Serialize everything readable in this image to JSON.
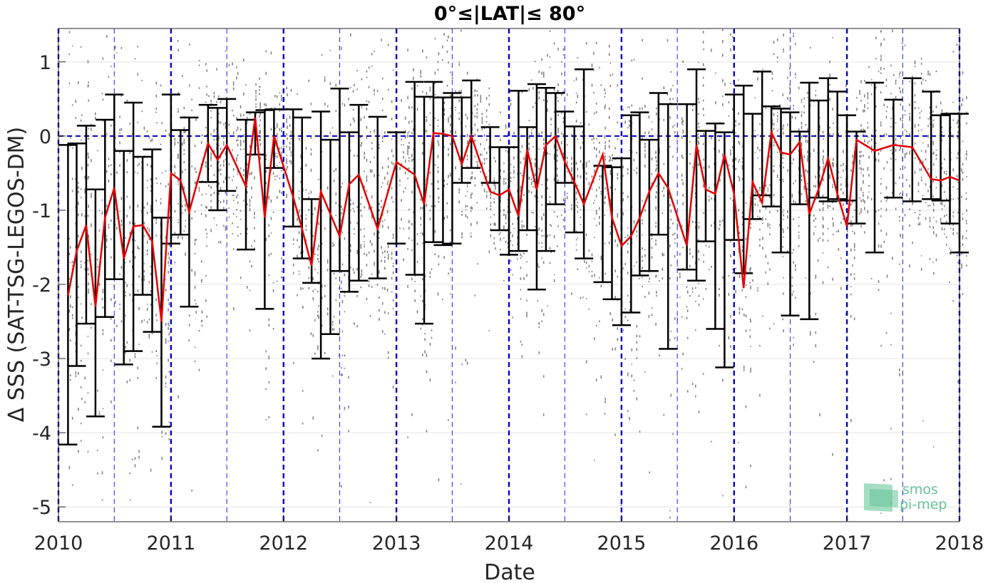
{
  "chart_data": {
    "type": "line",
    "title": "0°≤|LAT|≤ 80°",
    "xlabel": "Date",
    "ylabel": "Δ SSS (SAT-TSG-LEGOS-DM)",
    "xlim": [
      "2010-01-01",
      "2018-01-01"
    ],
    "ylim": [
      -5.2,
      1.45
    ],
    "x_ticks": [
      "2010",
      "2011",
      "2012",
      "2013",
      "2014",
      "2015",
      "2016",
      "2017",
      "2018"
    ],
    "y_ticks": [
      1,
      0,
      -1,
      -2,
      -3,
      -4,
      -5
    ],
    "y_tick_labels": [
      "1",
      "0",
      "-1",
      "-2",
      "-3",
      "-4",
      "-5"
    ],
    "grid": true,
    "reference_line": 0,
    "colors": {
      "mean_line": "#e60000",
      "error_bars": "#000000",
      "scatter": "#6e6e6e",
      "year_lines": "#0000cc",
      "half_year_lines": "#3333ff"
    },
    "series": [
      {
        "type": "line_with_error_bars",
        "x": [
          "2010-02-01",
          "2010-03-01",
          "2010-04-01",
          "2010-05-01",
          "2010-06-01",
          "2010-07-01",
          "2010-08-01",
          "2010-09-01",
          "2010-10-01",
          "2010-11-01",
          "2010-12-01",
          "2011-01-01",
          "2011-02-01",
          "2011-03-01",
          "2011-05-01",
          "2011-06-01",
          "2011-07-01",
          "2011-09-01",
          "2011-10-01",
          "2011-11-01",
          "2011-12-01",
          "2012-02-01",
          "2012-03-01",
          "2012-04-01",
          "2012-05-01",
          "2012-06-01",
          "2012-07-01",
          "2012-08-01",
          "2012-09-01",
          "2012-11-01",
          "2013-01-01",
          "2013-03-01",
          "2013-04-01",
          "2013-05-01",
          "2013-06-01",
          "2013-07-01",
          "2013-08-01",
          "2013-09-01",
          "2013-11-01",
          "2013-12-01",
          "2014-01-01",
          "2014-02-01",
          "2014-03-01",
          "2014-04-01",
          "2014-05-01",
          "2014-06-01",
          "2014-07-01",
          "2014-08-01",
          "2014-09-01",
          "2014-11-01",
          "2014-12-01",
          "2015-01-01",
          "2015-02-01",
          "2015-03-01",
          "2015-04-01",
          "2015-05-01",
          "2015-06-01",
          "2015-08-01",
          "2015-09-01",
          "2015-10-01",
          "2015-11-01",
          "2015-12-01",
          "2016-01-01",
          "2016-02-01",
          "2016-03-01",
          "2016-04-01",
          "2016-05-01",
          "2016-06-01",
          "2016-07-01",
          "2016-08-01",
          "2016-09-01",
          "2016-10-01",
          "2016-11-01",
          "2016-12-01",
          "2017-01-01",
          "2017-02-01",
          "2017-04-01",
          "2017-06-01",
          "2017-08-01",
          "2017-10-01",
          "2017-11-01",
          "2017-12-01",
          "2018-01-01"
        ],
        "mean": [
          -2.15,
          -1.55,
          -1.2,
          -2.3,
          -1.1,
          -0.7,
          -1.65,
          -1.22,
          -1.2,
          -1.42,
          -2.5,
          -0.5,
          -0.6,
          -1.02,
          -0.1,
          -0.32,
          -0.12,
          -0.68,
          0.25,
          -1.1,
          0.0,
          -0.82,
          -1.25,
          -1.75,
          -0.75,
          -1.05,
          -1.35,
          -0.65,
          -0.52,
          -1.25,
          -0.35,
          -0.52,
          -0.92,
          0.04,
          0.03,
          0.0,
          -0.38,
          0.0,
          -0.75,
          -0.8,
          -0.72,
          -1.08,
          -0.18,
          -0.72,
          -0.12,
          0.0,
          -0.35,
          -0.62,
          -0.92,
          -0.25,
          -1.1,
          -1.48,
          -1.35,
          -1.1,
          -0.75,
          -0.5,
          -0.7,
          -1.48,
          -0.12,
          -0.72,
          -0.78,
          -0.25,
          -0.78,
          -2.05,
          -0.62,
          -0.9,
          0.05,
          -0.22,
          -0.25,
          -0.08,
          -1.05,
          -0.72,
          -0.3,
          -0.78,
          -1.22,
          -0.05,
          -0.2,
          -0.12,
          -0.15,
          -0.58,
          -0.6,
          -0.55,
          -0.6
        ],
        "upper": [
          -0.12,
          -0.1,
          0.14,
          -0.72,
          0.22,
          0.56,
          -0.2,
          0.45,
          -0.28,
          -0.18,
          -1.1,
          0.56,
          0.08,
          0.25,
          0.42,
          0.38,
          0.5,
          0.22,
          0.32,
          0.35,
          0.36,
          0.36,
          0.25,
          -0.85,
          0.33,
          -0.05,
          0.64,
          0.05,
          0.42,
          0.26,
          0.05,
          0.73,
          0.53,
          0.73,
          0.52,
          0.58,
          0.52,
          0.75,
          0.12,
          -0.15,
          -0.15,
          0.61,
          0.12,
          0.7,
          0.65,
          0.58,
          0.33,
          0.13,
          0.9,
          -0.4,
          -0.42,
          -0.3,
          0.28,
          0.32,
          -0.05,
          0.58,
          0.43,
          0.43,
          0.9,
          0.07,
          0.17,
          0.05,
          0.56,
          0.68,
          0.3,
          0.87,
          0.4,
          0.37,
          0.32,
          0.06,
          0.72,
          0.48,
          0.78,
          0.6,
          0.28,
          0.06,
          0.72,
          0.49,
          0.78,
          0.6,
          0.28,
          0.3,
          0.3
        ],
        "lower": [
          -4.16,
          -3.1,
          -2.53,
          -3.78,
          -2.44,
          -1.93,
          -3.08,
          -2.9,
          -2.14,
          -2.64,
          -3.92,
          -1.45,
          -1.33,
          -2.3,
          -0.62,
          -1.0,
          -0.74,
          -1.53,
          -0.25,
          -2.33,
          -0.43,
          -1.22,
          -1.65,
          -1.98,
          -3.0,
          -2.67,
          -1.82,
          -2.1,
          -1.95,
          -1.92,
          -1.45,
          -1.87,
          -2.53,
          -1.43,
          -1.47,
          -1.45,
          -0.63,
          -0.43,
          -0.63,
          -1.27,
          -1.6,
          -1.55,
          -1.27,
          -2.07,
          -1.55,
          -0.92,
          -0.63,
          -1.3,
          -1.65,
          -1.97,
          -2.2,
          -2.55,
          -2.38,
          -1.88,
          -1.82,
          -1.33,
          -2.87,
          -1.8,
          -1.95,
          -1.42,
          -2.6,
          -3.12,
          -1.4,
          -1.85,
          -1.12,
          -0.8,
          -0.95,
          -1.57,
          -2.42,
          -0.92,
          -2.47,
          -0.83,
          -0.88,
          -0.85,
          -0.87,
          -1.18,
          -1.57,
          -0.83,
          -0.88,
          -0.85,
          -0.87,
          -1.18,
          -1.57
        ]
      }
    ]
  },
  "watermark": {
    "line1": "smos",
    "line2": "pi-mep"
  }
}
